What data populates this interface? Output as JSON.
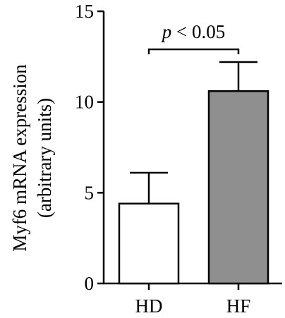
{
  "chart_data": {
    "type": "bar",
    "categories": [
      "HD",
      "HF"
    ],
    "values": [
      4.4,
      10.6
    ],
    "error_upper": [
      6.1,
      12.2
    ],
    "colors": [
      "#ffffff",
      "#8f8f8f"
    ],
    "title": "",
    "xlabel": "",
    "ylabel_lines": [
      "Myf6 mRNA expression",
      "(arbitrary units)"
    ],
    "ylim": [
      0,
      15
    ],
    "yticks": [
      0,
      5,
      10,
      15
    ],
    "grid": false,
    "annotation": {
      "p_symbol": "p",
      "p_rest": " < 0.05"
    }
  }
}
